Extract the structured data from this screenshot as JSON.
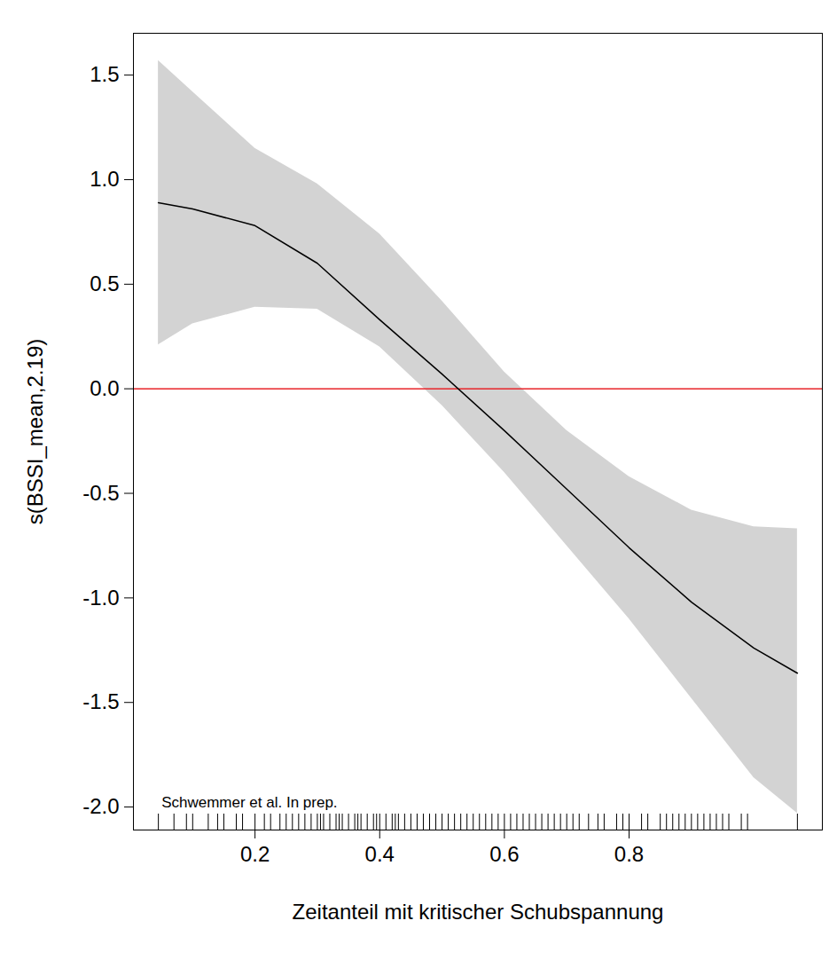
{
  "chart_data": {
    "type": "line",
    "x_label": "Zeitanteil mit kritischer Schubspannung",
    "y_label": "s(BSSI_mean,2.19)",
    "x": [
      0.045,
      0.1,
      0.2,
      0.3,
      0.4,
      0.5,
      0.6,
      0.7,
      0.8,
      0.9,
      1.0,
      1.07
    ],
    "values": [
      0.89,
      0.86,
      0.78,
      0.6,
      0.33,
      0.07,
      -0.2,
      -0.48,
      -0.76,
      -1.02,
      -1.24,
      -1.36
    ],
    "ci_upper": [
      1.57,
      1.42,
      1.15,
      0.98,
      0.74,
      0.42,
      0.08,
      -0.2,
      -0.42,
      -0.58,
      -0.66,
      -0.67
    ],
    "ci_lower": [
      0.21,
      0.31,
      0.39,
      0.38,
      0.2,
      -0.08,
      -0.4,
      -0.75,
      -1.1,
      -1.48,
      -1.86,
      -2.03
    ],
    "color": "#000000",
    "ci_color": "#d3d3d3",
    "reference_line": {
      "value": 0,
      "color": "#e8252a"
    },
    "rug": [
      0.045,
      0.07,
      0.09,
      0.1,
      0.125,
      0.14,
      0.15,
      0.17,
      0.18,
      0.2,
      0.215,
      0.225,
      0.24,
      0.25,
      0.26,
      0.27,
      0.28,
      0.29,
      0.3,
      0.305,
      0.31,
      0.32,
      0.33,
      0.335,
      0.34,
      0.35,
      0.36,
      0.365,
      0.37,
      0.38,
      0.39,
      0.395,
      0.4,
      0.41,
      0.42,
      0.425,
      0.43,
      0.44,
      0.45,
      0.46,
      0.47,
      0.48,
      0.49,
      0.5,
      0.51,
      0.52,
      0.53,
      0.54,
      0.55,
      0.56,
      0.57,
      0.58,
      0.59,
      0.6,
      0.61,
      0.62,
      0.63,
      0.64,
      0.65,
      0.66,
      0.67,
      0.68,
      0.69,
      0.7,
      0.71,
      0.72,
      0.735,
      0.75,
      0.76,
      0.78,
      0.79,
      0.8,
      0.82,
      0.83,
      0.85,
      0.86,
      0.87,
      0.88,
      0.89,
      0.9,
      0.91,
      0.92,
      0.93,
      0.94,
      0.95,
      0.96,
      0.98,
      0.99,
      1.07
    ],
    "annotation": {
      "text": "Schwemmer et al. In prep.",
      "x": 0.05,
      "y": -1.98
    },
    "xlim": [
      0.005,
      1.11
    ],
    "ylim": [
      -2.11,
      1.7
    ],
    "xticks": [
      0.2,
      0.4,
      0.6,
      0.8
    ],
    "yticks": [
      {
        "value": -2,
        "label": "-2.0"
      },
      -1.5,
      {
        "value": -1,
        "label": "-1.0"
      },
      -0.5,
      {
        "value": 0,
        "label": "0.0"
      },
      0.5,
      {
        "value": 1,
        "label": "1.0"
      },
      1.5
    ],
    "grid": false
  }
}
